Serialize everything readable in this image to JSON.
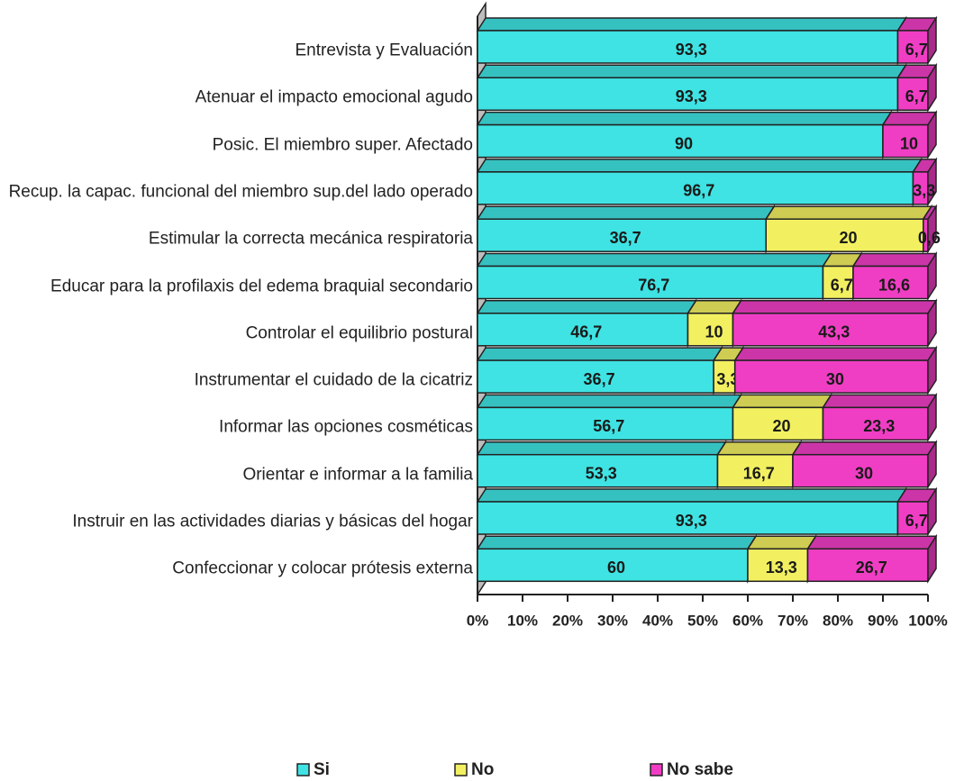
{
  "chart_data": {
    "type": "bar",
    "orientation": "horizontal",
    "stacked": "percent",
    "categories": [
      "Entrevista y Evaluación",
      "Atenuar el impacto emocional agudo",
      "Posic. El miembro super. Afectado",
      "Recup. la capac. funcional del miembro sup.del lado operado",
      "Estimular la correcta mecánica respiratoria",
      "Educar para la profilaxis del edema braquial secondario",
      "Controlar el equilibrio postural",
      "Instrumentar el cuidado de la cicatriz",
      "Informar las opciones cosméticas",
      "Orientar e informar a la familia",
      "Instruir en las actividades diarias y básicas del hogar",
      "Confeccionar y colocar prótesis externa"
    ],
    "series": [
      {
        "name": "Si",
        "color": "#3fe3e3",
        "values": [
          93.3,
          93.3,
          90,
          96.7,
          36.7,
          76.7,
          46.7,
          36.7,
          56.7,
          53.3,
          93.3,
          60
        ],
        "value_labels": [
          "93,3",
          "93,3",
          "90",
          "96,7",
          "36,7",
          "76,7",
          "46,7",
          "36,7",
          "56,7",
          "53,3",
          "93,3",
          "60"
        ]
      },
      {
        "name": "No",
        "color": "#f2f060",
        "values": [
          null,
          null,
          null,
          null,
          20,
          6.7,
          10,
          3.3,
          20,
          16.7,
          null,
          13.3
        ],
        "value_labels": [
          null,
          null,
          null,
          null,
          "20",
          "6,7",
          "10",
          "3,3",
          "20",
          "16,7",
          null,
          "13,3"
        ]
      },
      {
        "name": "No sabe",
        "color": "#f03ec4",
        "values": [
          6.7,
          6.7,
          10,
          3.3,
          0.6,
          16.6,
          43.3,
          30,
          23.3,
          30,
          6.7,
          26.7
        ],
        "value_labels": [
          "6,7",
          "6,7",
          "10",
          "3,3",
          "0,6",
          "16,6",
          "43,3",
          "30",
          "23,3",
          "30",
          "6,7",
          "26,7"
        ]
      }
    ],
    "xlim": [
      0,
      100
    ],
    "xticks": [
      {
        "value": 0,
        "label": "0%"
      },
      {
        "value": 10,
        "label": "10%"
      },
      {
        "value": 20,
        "label": "20%"
      },
      {
        "value": 30,
        "label": "30%"
      },
      {
        "value": 40,
        "label": "40%"
      },
      {
        "value": 50,
        "label": "50%"
      },
      {
        "value": 60,
        "label": "60%"
      },
      {
        "value": 70,
        "label": "70%"
      },
      {
        "value": 80,
        "label": "80%"
      },
      {
        "value": 90,
        "label": "90%"
      },
      {
        "value": 100,
        "label": "100%"
      }
    ],
    "legend": "bottom"
  }
}
